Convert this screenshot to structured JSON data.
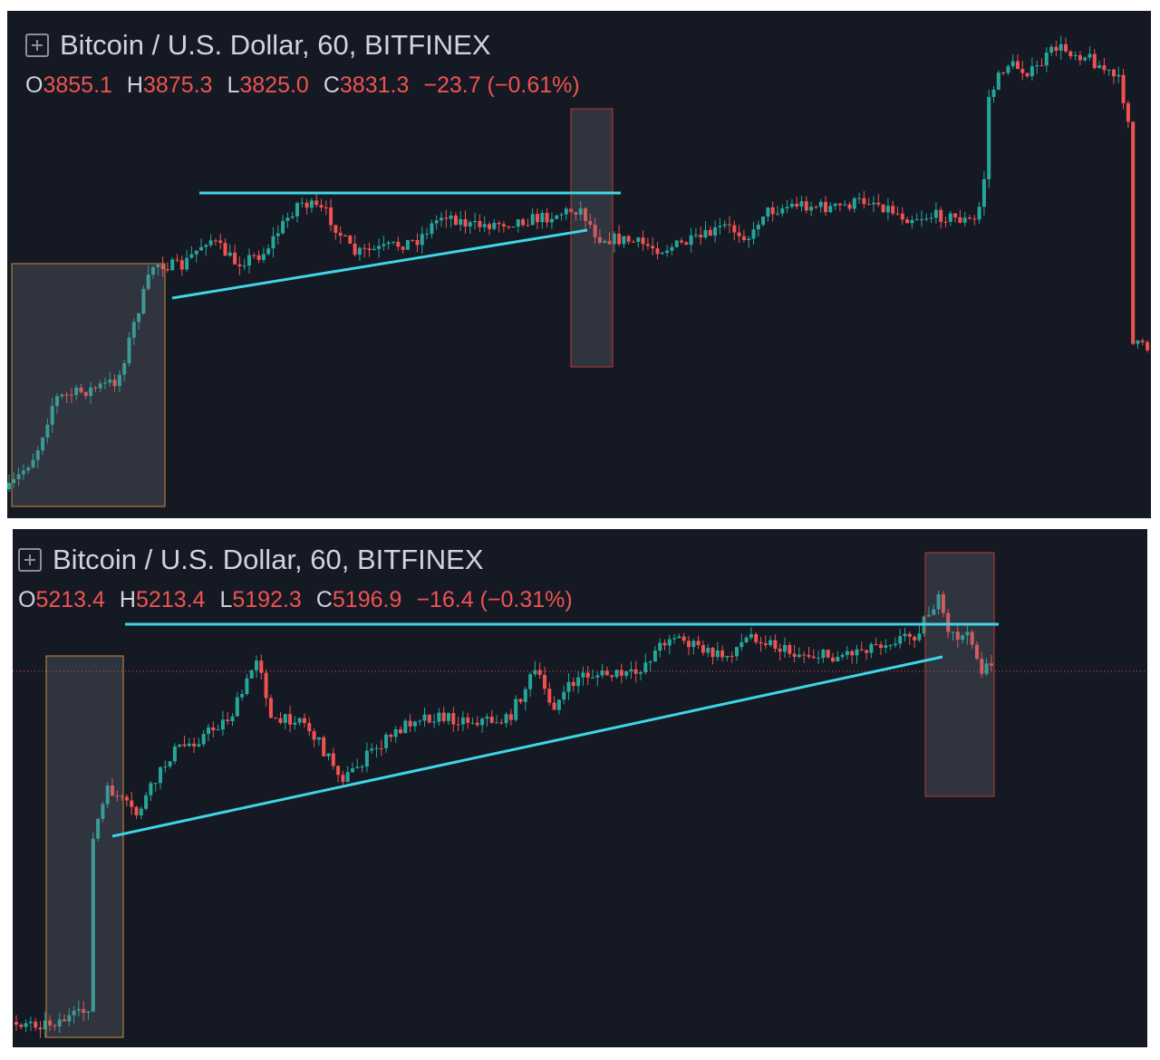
{
  "panels": [
    {
      "title": "Bitcoin / U.S. Dollar, 60, BITFINEX",
      "ohlc": [
        {
          "label": "O",
          "value": "3855.1"
        },
        {
          "label": "H",
          "value": "3875.3"
        },
        {
          "label": "L",
          "value": "3825.0"
        },
        {
          "label": "C",
          "value": "3831.3"
        }
      ],
      "change": "−23.7 (−0.61%)"
    },
    {
      "title": "Bitcoin / U.S. Dollar, 60, BITFINEX",
      "ohlc": [
        {
          "label": "O",
          "value": "5213.4"
        },
        {
          "label": "H",
          "value": "5213.4"
        },
        {
          "label": "L",
          "value": "5192.3"
        },
        {
          "label": "C",
          "value": "5196.9"
        }
      ],
      "change": "−16.4 (−0.31%)"
    }
  ]
}
